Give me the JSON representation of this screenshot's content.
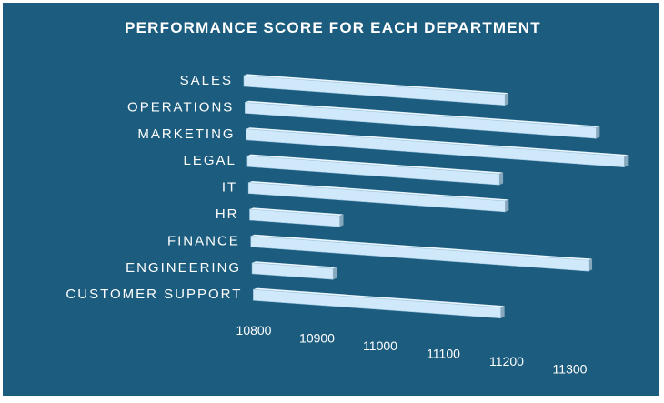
{
  "chart_data": {
    "type": "bar",
    "orientation": "horizontal",
    "style": "3d",
    "title": "PERFORMANCE SCORE FOR EACH DEPARTMENT",
    "categories": [
      "SALES",
      "OPERATIONS",
      "MARKETING",
      "LEGAL",
      "IT",
      "HR",
      "FINANCE",
      "ENGINEERING",
      "CUSTOMER SUPPORT"
    ],
    "values": [
      11090,
      11190,
      11220,
      11080,
      11085,
      10900,
      11175,
      10890,
      11075
    ],
    "xlim": [
      10800,
      11300
    ],
    "x_ticks": [
      "10800",
      "10900",
      "11000",
      "11100",
      "11200",
      "11300"
    ],
    "xlabel": "",
    "ylabel": "",
    "legend": "none",
    "grid": "none"
  },
  "colors": {
    "background": "#1C5C7E",
    "bar_front": "#CFE9FB",
    "bar_top": "#ECF7FF",
    "bar_side": "#86A7BC",
    "text": "#FFFFFF",
    "page": "#FFFFFF"
  }
}
